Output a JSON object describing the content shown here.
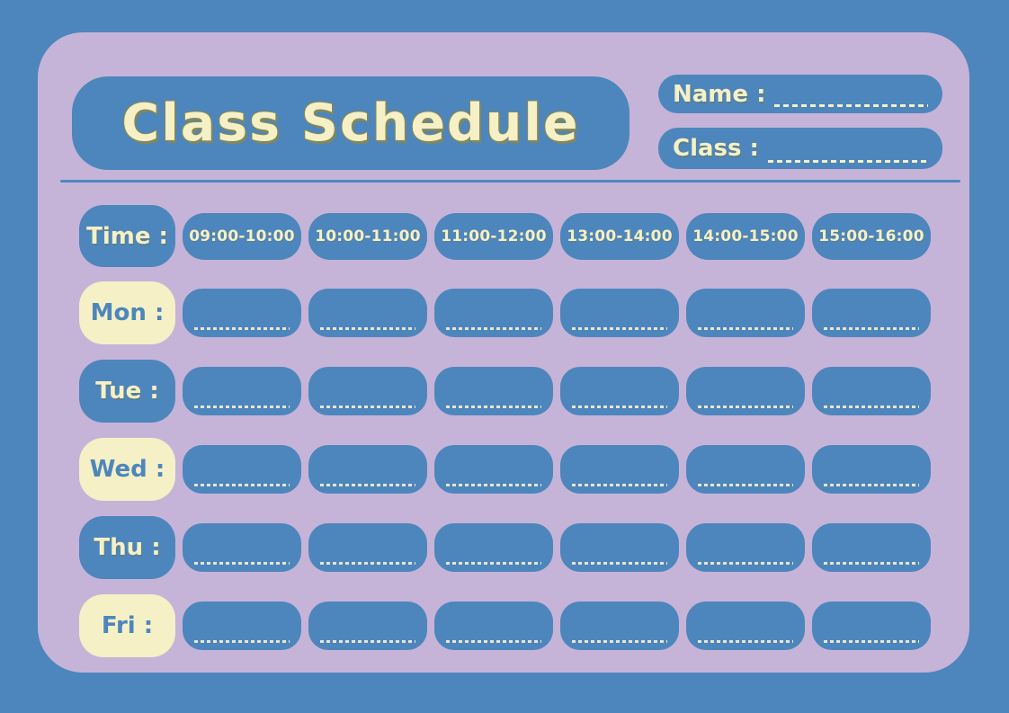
{
  "header": {
    "title": "Class Schedule",
    "name_label": "Name :",
    "class_label": "Class :"
  },
  "schedule": {
    "time_label": "Time :",
    "time_slots": [
      "09:00-10:00",
      "10:00-11:00",
      "11:00-12:00",
      "13:00-14:00",
      "14:00-15:00",
      "15:00-16:00"
    ],
    "days": [
      {
        "label": "Mon :",
        "variant": "cream"
      },
      {
        "label": "Tue :",
        "variant": "blue"
      },
      {
        "label": "Wed :",
        "variant": "cream"
      },
      {
        "label": "Thu :",
        "variant": "blue"
      },
      {
        "label": "Fri :",
        "variant": "cream"
      }
    ],
    "empty_cell_value": ""
  },
  "colors": {
    "background_blue": "#4D86BC",
    "panel_lavender": "#C5B4D8",
    "box_blue": "#4D86BC",
    "cream_text": "#F5F0C6",
    "title_outline_olive": "#82875E",
    "cell_dash": "#E9E5CF"
  }
}
